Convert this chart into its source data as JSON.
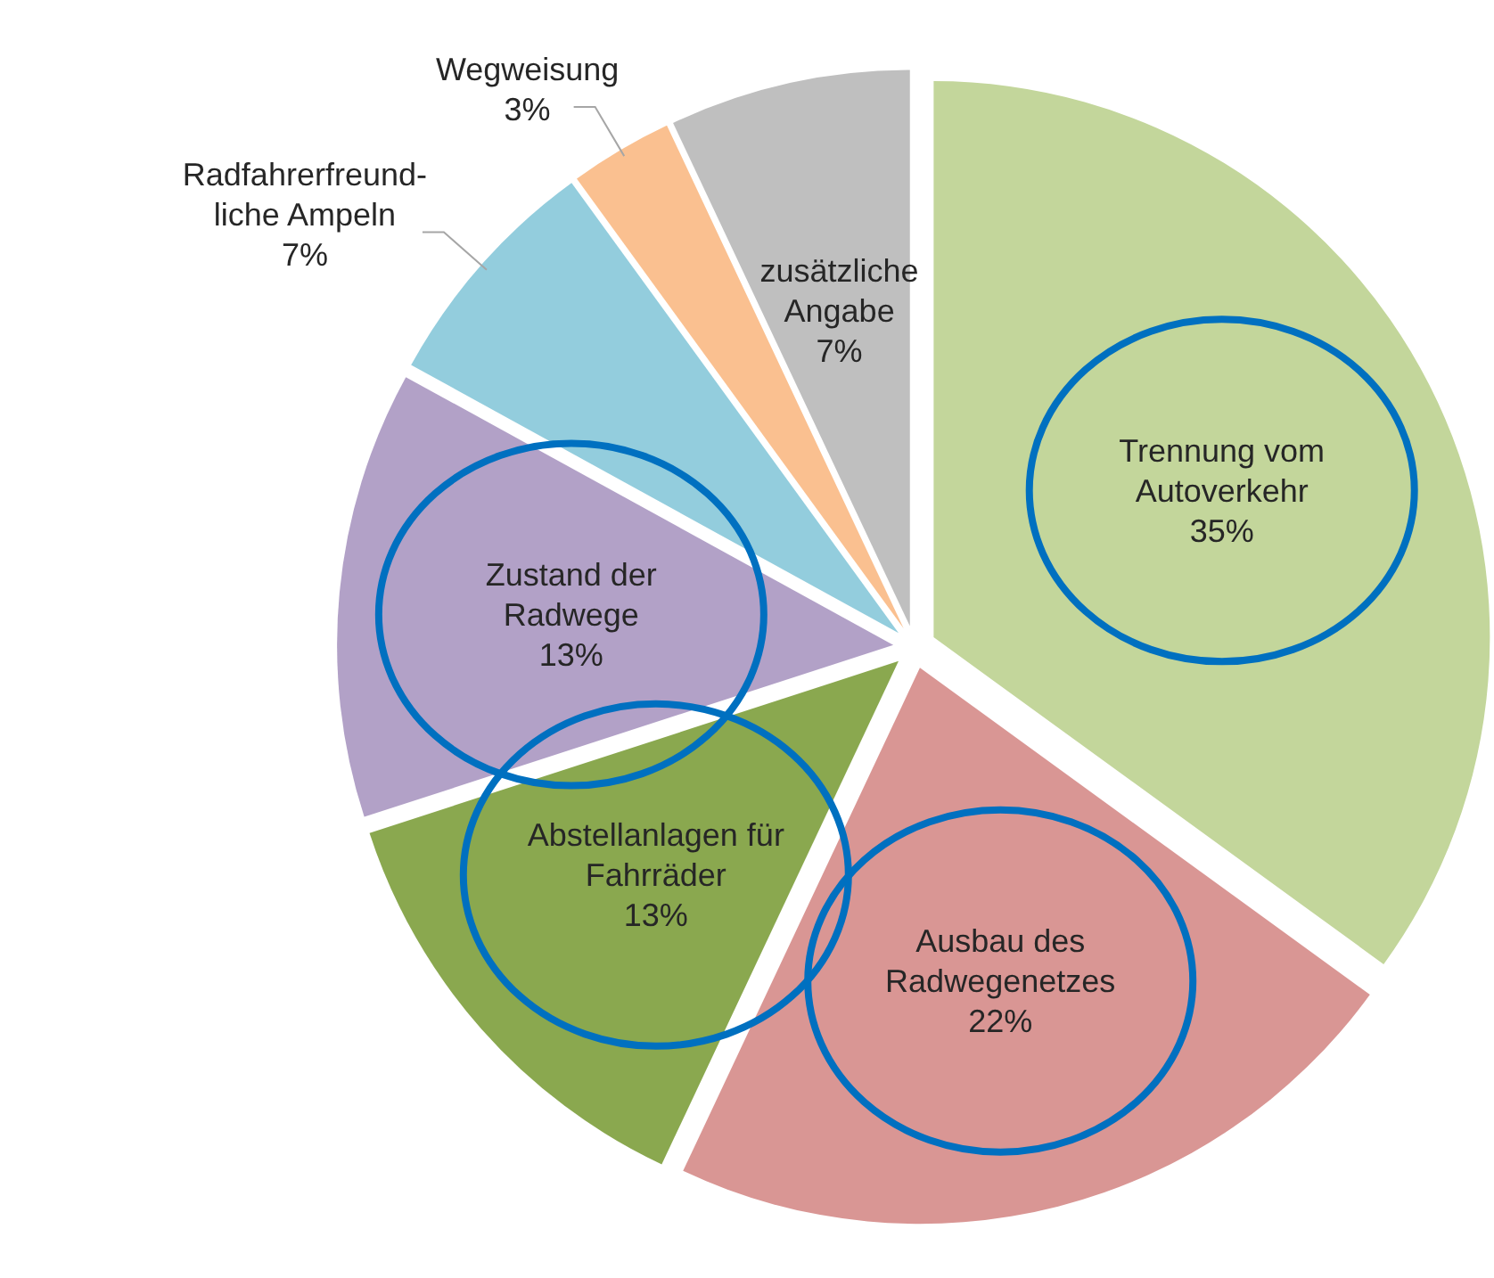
{
  "chart_data": {
    "type": "pie",
    "categories": [
      "Trennung vom Autoverkehr",
      "Ausbau des Radwegenetzes",
      "Abstellanlagen für Fahrräder",
      "Zustand der Radwege",
      "Radfahrerfreund-liche Ampeln",
      "Wegweisung",
      "zusätzliche Angabe"
    ],
    "values": [
      35,
      22,
      13,
      13,
      7,
      3,
      7
    ],
    "value_labels": [
      "35%",
      "22%",
      "13%",
      "13%",
      "7%",
      "3%",
      "7%"
    ],
    "colors": [
      "#c3d69b",
      "#d99694",
      "#8aa84f",
      "#b2a1c7",
      "#93cddd",
      "#fac090",
      "#bfbfbf"
    ]
  }
}
